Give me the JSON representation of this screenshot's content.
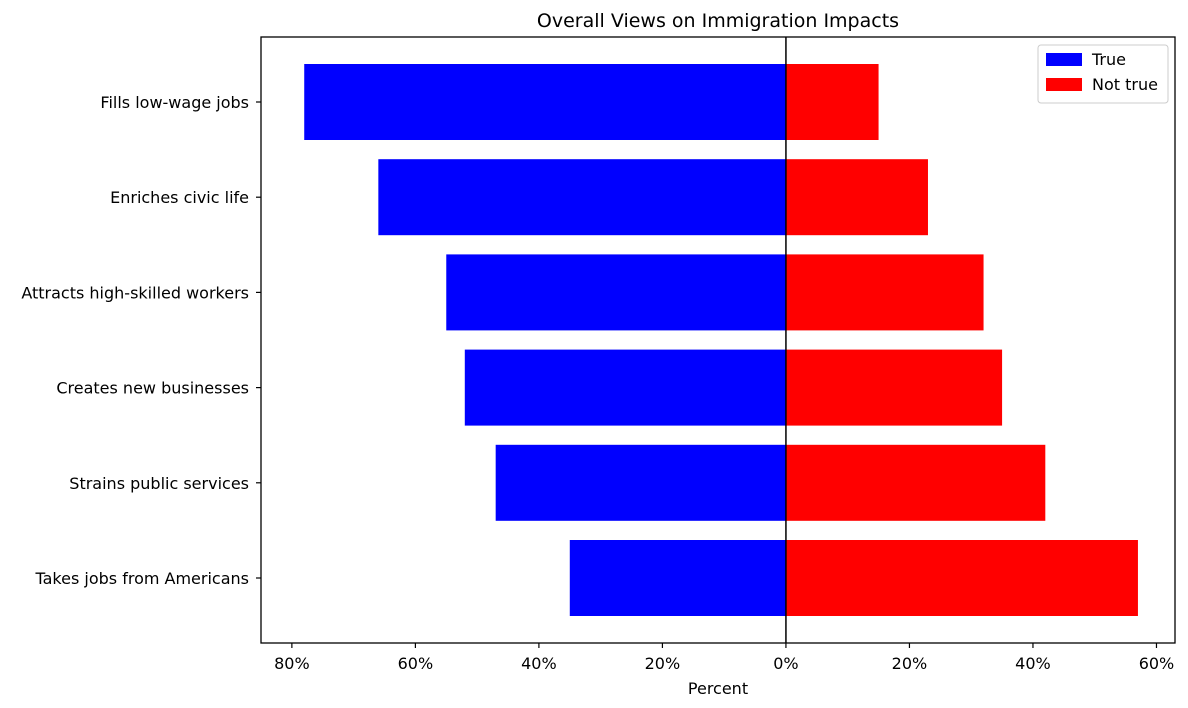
{
  "chart_data": {
    "type": "bar",
    "orientation": "horizontal-diverging",
    "title": "Overall Views on Immigration Impacts",
    "xlabel": "Percent",
    "ylabel": "",
    "categories": [
      "Fills low-wage jobs",
      "Enriches civic life",
      "Attracts high-skilled workers",
      "Creates new businesses",
      "Strains public services",
      "Takes jobs from Americans"
    ],
    "series": [
      {
        "name": "True",
        "color": "#0000ff",
        "direction": "left",
        "values": [
          78,
          66,
          55,
          52,
          47,
          35
        ]
      },
      {
        "name": "Not true",
        "color": "#ff0000",
        "direction": "right",
        "values": [
          15,
          23,
          32,
          35,
          42,
          57
        ]
      }
    ],
    "xlim": [
      -85,
      63
    ],
    "xticks": [
      -80,
      -60,
      -40,
      -20,
      0,
      20,
      40,
      60
    ],
    "xtick_labels": [
      "80%",
      "60%",
      "40%",
      "20%",
      "0%",
      "20%",
      "40%",
      "60%"
    ],
    "legend_position": "top-right",
    "grid": false
  }
}
